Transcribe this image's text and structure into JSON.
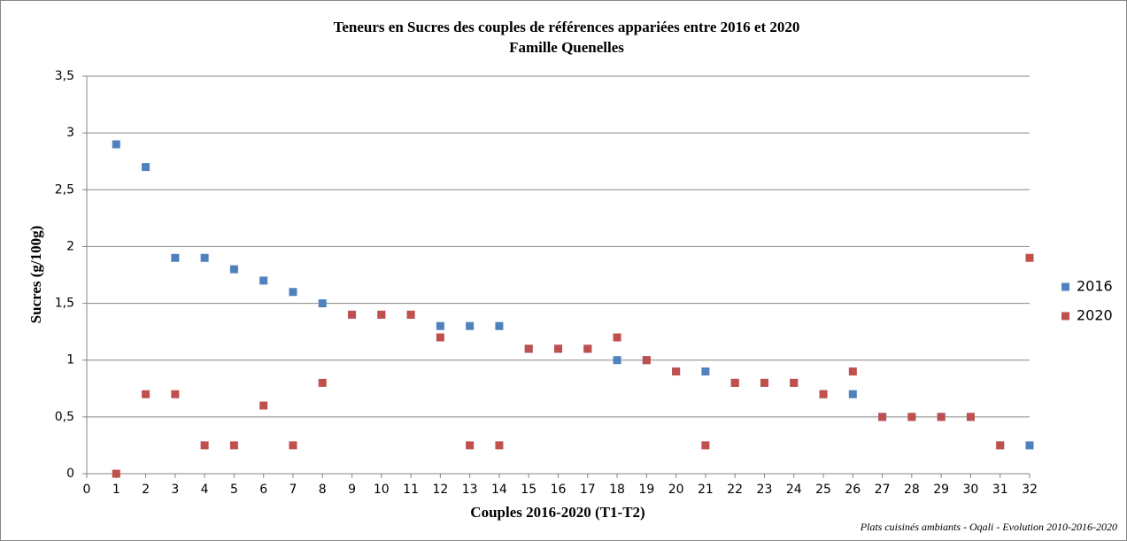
{
  "chart_data": {
    "type": "scatter",
    "title": "Teneurs en Sucres des couples de références appariées entre 2016 et 2020",
    "subtitle": "Famille Quenelles",
    "x_label": "Couples 2016-2020 (T1-T2)",
    "y_label": "Sucres  (g/100g)",
    "source": "Plats cuisinés ambiants - Oqali - Evolution 2010-2016-2020",
    "x": [
      1,
      2,
      3,
      4,
      5,
      6,
      7,
      8,
      9,
      10,
      11,
      12,
      13,
      14,
      15,
      16,
      17,
      18,
      19,
      20,
      21,
      22,
      23,
      24,
      25,
      26,
      27,
      28,
      29,
      30,
      31,
      32
    ],
    "series": [
      {
        "name": "2016",
        "color": "#4f81bd",
        "values": [
          2.9,
          2.7,
          1.9,
          1.9,
          1.8,
          1.7,
          1.6,
          1.5,
          1.4,
          1.4,
          1.4,
          1.3,
          1.3,
          1.3,
          1.1,
          1.1,
          1.1,
          1.0,
          1.0,
          0.9,
          0.9,
          0.8,
          0.8,
          0.8,
          0.7,
          0.7,
          0.5,
          0.5,
          0.5,
          0.5,
          0.25,
          0.25
        ]
      },
      {
        "name": "2020",
        "color": "#c0504d",
        "values": [
          0,
          0.7,
          0.7,
          0.25,
          0.25,
          0.6,
          0.25,
          0.8,
          1.4,
          1.4,
          1.4,
          1.2,
          0.25,
          0.25,
          1.1,
          1.1,
          1.1,
          1.2,
          1.0,
          0.9,
          0.25,
          0.8,
          0.8,
          0.8,
          0.7,
          0.9,
          0.5,
          0.5,
          0.5,
          0.5,
          0.25,
          1.9
        ]
      }
    ],
    "xlim": [
      0,
      32
    ],
    "xticks": [
      0,
      1,
      2,
      3,
      4,
      5,
      6,
      7,
      8,
      9,
      10,
      11,
      12,
      13,
      14,
      15,
      16,
      17,
      18,
      19,
      20,
      21,
      22,
      23,
      24,
      25,
      26,
      27,
      28,
      29,
      30,
      31,
      32
    ],
    "ylim": [
      0,
      3.5
    ],
    "yticks": [
      0,
      {
        "value": 0.5,
        "label": "0,5"
      },
      1,
      {
        "value": 1.5,
        "label": "1,5"
      },
      2,
      {
        "value": 2.5,
        "label": "2,5"
      },
      3,
      {
        "value": 3.5,
        "label": "3,5"
      }
    ],
    "grid": true,
    "legend": "right"
  }
}
